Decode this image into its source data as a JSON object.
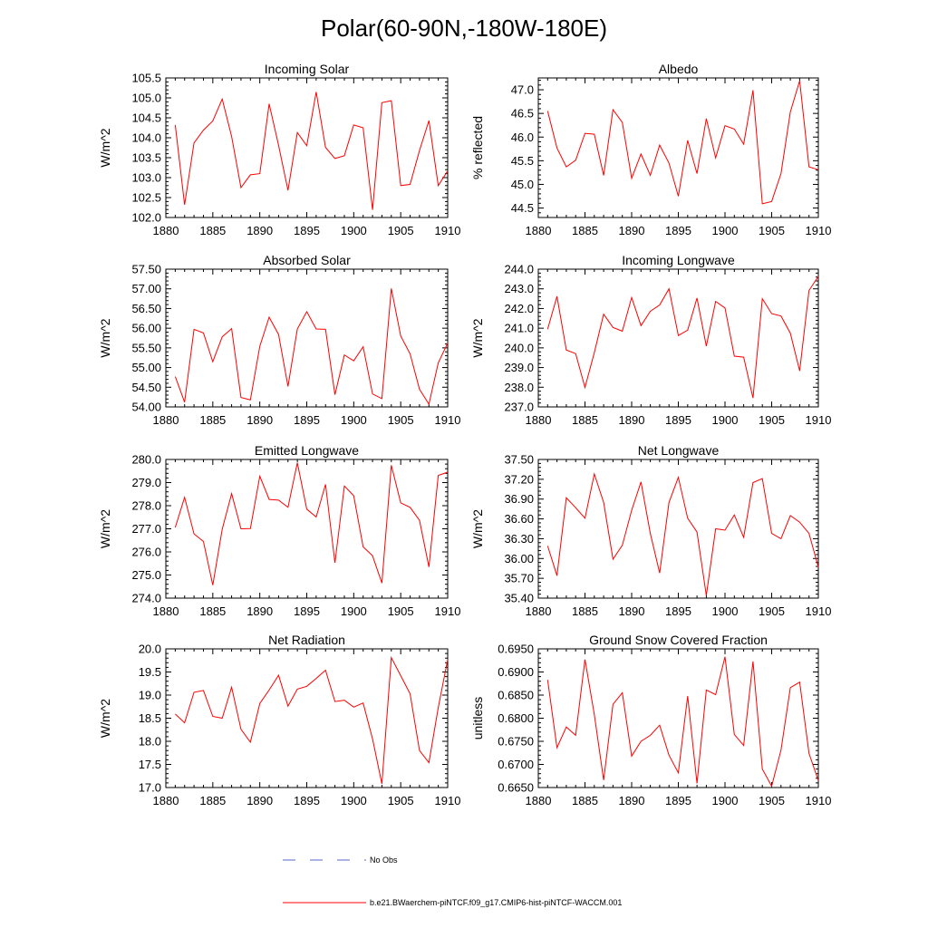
{
  "title": "Polar(60-90N,-180W-180E)",
  "legend": {
    "entries": [
      {
        "label": "No Obs",
        "color": "#5566cc",
        "style": "dashed"
      },
      {
        "label": "b.e21.BWaerchem-piNTCF.f09_g17.CMIP6-hist-piNTCF-WACCM.001",
        "color": "#ff0000",
        "style": "solid"
      }
    ]
  },
  "chart_data": [
    {
      "type": "line",
      "title": "Incoming Solar",
      "xlabel": "",
      "ylabel": "W/m^2",
      "xlim": [
        1880,
        1910
      ],
      "ylim": [
        102.0,
        105.5
      ],
      "xticks": [
        "1880",
        "1885",
        "1890",
        "1895",
        "1900",
        "1905",
        "1910"
      ],
      "yticks": [
        "102.0",
        "102.5",
        "103.0",
        "103.5",
        "104.0",
        "104.5",
        "105.0",
        "105.5"
      ],
      "x": [
        1881,
        1882,
        1883,
        1884,
        1885,
        1886,
        1887,
        1888,
        1889,
        1890,
        1891,
        1892,
        1893,
        1894,
        1895,
        1896,
        1897,
        1898,
        1899,
        1900,
        1901,
        1902,
        1903,
        1904,
        1905,
        1906,
        1907,
        1908,
        1909,
        1910
      ],
      "series": [
        {
          "color": "#ff0000",
          "values": [
            104.32,
            102.32,
            103.87,
            104.19,
            104.42,
            104.97,
            104.03,
            102.75,
            103.07,
            103.1,
            104.85,
            103.81,
            102.68,
            104.13,
            103.8,
            105.15,
            103.76,
            103.48,
            103.55,
            104.32,
            104.25,
            102.19,
            104.88,
            104.93,
            102.8,
            102.83,
            103.68,
            104.43,
            102.8,
            103.17
          ]
        }
      ]
    },
    {
      "type": "line",
      "title": "Albedo",
      "xlabel": "",
      "ylabel": "% reflected",
      "xlim": [
        1880,
        1910
      ],
      "ylim": [
        44.3,
        47.25
      ],
      "xticks": [
        "1880",
        "1885",
        "1890",
        "1895",
        "1900",
        "1905",
        "1910"
      ],
      "yticks": [
        "44.5",
        "45.0",
        "45.5",
        "46.0",
        "46.5",
        "47.0"
      ],
      "x": [
        1881,
        1882,
        1883,
        1884,
        1885,
        1886,
        1887,
        1888,
        1889,
        1890,
        1891,
        1892,
        1893,
        1894,
        1895,
        1896,
        1897,
        1898,
        1899,
        1900,
        1901,
        1902,
        1903,
        1904,
        1905,
        1906,
        1907,
        1908,
        1909,
        1910
      ],
      "series": [
        {
          "color": "#ff0000",
          "values": [
            46.55,
            45.77,
            45.37,
            45.51,
            46.08,
            46.06,
            45.19,
            46.58,
            46.31,
            45.13,
            45.64,
            45.19,
            45.83,
            45.45,
            44.75,
            45.93,
            45.23,
            46.39,
            45.56,
            46.24,
            46.17,
            45.85,
            46.99,
            44.59,
            44.64,
            45.23,
            46.53,
            47.19,
            45.37,
            45.31
          ]
        }
      ]
    },
    {
      "type": "line",
      "title": "Absorbed Solar",
      "xlabel": "",
      "ylabel": "W/m^2",
      "xlim": [
        1880,
        1910
      ],
      "ylim": [
        54.0,
        57.5
      ],
      "xticks": [
        "1880",
        "1885",
        "1890",
        "1895",
        "1900",
        "1905",
        "1910"
      ],
      "yticks": [
        "54.00",
        "54.50",
        "55.00",
        "55.50",
        "56.00",
        "56.50",
        "57.00",
        "57.50"
      ],
      "x": [
        1881,
        1882,
        1883,
        1884,
        1885,
        1886,
        1887,
        1888,
        1889,
        1890,
        1891,
        1892,
        1893,
        1894,
        1895,
        1896,
        1897,
        1898,
        1899,
        1900,
        1901,
        1902,
        1903,
        1904,
        1905,
        1906,
        1907,
        1908,
        1909,
        1910
      ],
      "series": [
        {
          "color": "#ff0000",
          "values": [
            54.77,
            54.12,
            55.97,
            55.88,
            55.15,
            55.78,
            55.99,
            54.24,
            54.18,
            55.54,
            56.28,
            55.84,
            54.52,
            55.98,
            56.42,
            55.98,
            55.97,
            54.31,
            55.32,
            55.17,
            55.53,
            54.33,
            54.21,
            57.01,
            55.8,
            55.35,
            54.45,
            54.07,
            55.12,
            55.62
          ]
        }
      ]
    },
    {
      "type": "line",
      "title": "Incoming Longwave",
      "xlabel": "",
      "ylabel": "W/m^2",
      "xlim": [
        1880,
        1910
      ],
      "ylim": [
        237.0,
        244.0
      ],
      "xticks": [
        "1880",
        "1885",
        "1890",
        "1895",
        "1900",
        "1905",
        "1910"
      ],
      "yticks": [
        "237.0",
        "238.0",
        "239.0",
        "240.0",
        "241.0",
        "242.0",
        "243.0",
        "244.0"
      ],
      "x": [
        1881,
        1882,
        1883,
        1884,
        1885,
        1886,
        1887,
        1888,
        1889,
        1890,
        1891,
        1892,
        1893,
        1894,
        1895,
        1896,
        1897,
        1898,
        1899,
        1900,
        1901,
        1902,
        1903,
        1904,
        1905,
        1906,
        1907,
        1908,
        1909,
        1910
      ],
      "series": [
        {
          "color": "#ff0000",
          "values": [
            240.95,
            242.62,
            239.89,
            239.71,
            237.99,
            239.76,
            241.71,
            241.04,
            240.85,
            242.56,
            241.13,
            241.86,
            242.18,
            243.0,
            240.63,
            240.9,
            242.53,
            240.09,
            242.36,
            242.03,
            239.58,
            239.53,
            237.45,
            242.5,
            241.74,
            241.62,
            240.75,
            238.83,
            242.92,
            243.63
          ]
        }
      ]
    },
    {
      "type": "line",
      "title": "Emitted Longwave",
      "xlabel": "",
      "ylabel": "W/m^2",
      "xlim": [
        1880,
        1910
      ],
      "ylim": [
        274.0,
        280.0
      ],
      "xticks": [
        "1880",
        "1885",
        "1890",
        "1895",
        "1900",
        "1905",
        "1910"
      ],
      "yticks": [
        "274.0",
        "275.0",
        "276.0",
        "277.0",
        "278.0",
        "279.0",
        "280.0"
      ],
      "x": [
        1881,
        1882,
        1883,
        1884,
        1885,
        1886,
        1887,
        1888,
        1889,
        1890,
        1891,
        1892,
        1893,
        1894,
        1895,
        1896,
        1897,
        1898,
        1899,
        1900,
        1901,
        1902,
        1903,
        1904,
        1905,
        1906,
        1907,
        1908,
        1909,
        1910
      ],
      "series": [
        {
          "color": "#ff0000",
          "values": [
            277.06,
            278.36,
            276.78,
            276.45,
            274.56,
            276.98,
            278.52,
            277.0,
            277.01,
            279.28,
            278.27,
            278.24,
            277.93,
            279.86,
            277.85,
            277.51,
            278.92,
            275.53,
            278.85,
            278.43,
            276.22,
            275.83,
            274.65,
            279.75,
            278.12,
            277.93,
            277.37,
            275.35,
            279.31,
            279.45
          ]
        }
      ]
    },
    {
      "type": "line",
      "title": "Net Longwave",
      "xlabel": "",
      "ylabel": "W/m^2",
      "xlim": [
        1880,
        1910
      ],
      "ylim": [
        35.4,
        37.5
      ],
      "xticks": [
        "1880",
        "1885",
        "1890",
        "1895",
        "1900",
        "1905",
        "1910"
      ],
      "yticks": [
        "35.40",
        "35.70",
        "36.00",
        "36.30",
        "36.60",
        "36.90",
        "37.20",
        "37.50"
      ],
      "x": [
        1881,
        1882,
        1883,
        1884,
        1885,
        1886,
        1887,
        1888,
        1889,
        1890,
        1891,
        1892,
        1893,
        1894,
        1895,
        1896,
        1897,
        1898,
        1899,
        1900,
        1901,
        1902,
        1903,
        1904,
        1905,
        1906,
        1907,
        1908,
        1909,
        1910
      ],
      "series": [
        {
          "color": "#ff0000",
          "values": [
            36.19,
            35.74,
            36.92,
            36.77,
            36.61,
            37.28,
            36.85,
            35.99,
            36.2,
            36.73,
            37.16,
            36.38,
            35.78,
            36.85,
            37.23,
            36.61,
            36.4,
            35.44,
            36.45,
            36.43,
            36.66,
            36.32,
            37.15,
            37.21,
            36.38,
            36.3,
            36.65,
            36.55,
            36.38,
            35.87
          ]
        }
      ]
    },
    {
      "type": "line",
      "title": "Net Radiation",
      "xlabel": "",
      "ylabel": "W/m^2",
      "xlim": [
        1880,
        1910
      ],
      "ylim": [
        17.0,
        20.0
      ],
      "xticks": [
        "1880",
        "1885",
        "1890",
        "1895",
        "1900",
        "1905",
        "1910"
      ],
      "yticks": [
        "17.0",
        "17.5",
        "18.0",
        "18.5",
        "19.0",
        "19.5",
        "20.0"
      ],
      "x": [
        1881,
        1882,
        1883,
        1884,
        1885,
        1886,
        1887,
        1888,
        1889,
        1890,
        1891,
        1892,
        1893,
        1894,
        1895,
        1896,
        1897,
        1898,
        1899,
        1900,
        1901,
        1902,
        1903,
        1904,
        1905,
        1906,
        1907,
        1908,
        1909,
        1910
      ],
      "series": [
        {
          "color": "#ff0000",
          "values": [
            18.59,
            18.4,
            19.06,
            19.1,
            18.54,
            18.5,
            19.17,
            18.26,
            17.98,
            18.82,
            19.11,
            19.43,
            18.76,
            19.13,
            19.19,
            19.36,
            19.54,
            18.86,
            18.89,
            18.74,
            18.83,
            18.05,
            17.08,
            19.81,
            19.42,
            19.03,
            17.8,
            17.54,
            18.73,
            19.77
          ]
        }
      ]
    },
    {
      "type": "line",
      "title": "Ground Snow Covered Fraction",
      "xlabel": "",
      "ylabel": "unitless",
      "xlim": [
        1880,
        1910
      ],
      "ylim": [
        0.665,
        0.695
      ],
      "xticks": [
        "1880",
        "1885",
        "1890",
        "1895",
        "1900",
        "1905",
        "1910"
      ],
      "yticks": [
        "0.6650",
        "0.6700",
        "0.6750",
        "0.6800",
        "0.6850",
        "0.6900",
        "0.6950"
      ],
      "x": [
        1881,
        1882,
        1883,
        1884,
        1885,
        1886,
        1887,
        1888,
        1889,
        1890,
        1891,
        1892,
        1893,
        1894,
        1895,
        1896,
        1897,
        1898,
        1899,
        1900,
        1901,
        1902,
        1903,
        1904,
        1905,
        1906,
        1907,
        1908,
        1909,
        1910
      ],
      "series": [
        {
          "color": "#ff0000",
          "values": [
            0.6883,
            0.6736,
            0.6781,
            0.6763,
            0.6927,
            0.6808,
            0.6666,
            0.683,
            0.6855,
            0.6718,
            0.675,
            0.6763,
            0.6785,
            0.672,
            0.6682,
            0.6848,
            0.6659,
            0.6861,
            0.6851,
            0.6933,
            0.6765,
            0.6741,
            0.6923,
            0.669,
            0.6653,
            0.6731,
            0.6866,
            0.6878,
            0.6724,
            0.6665
          ]
        }
      ]
    }
  ]
}
